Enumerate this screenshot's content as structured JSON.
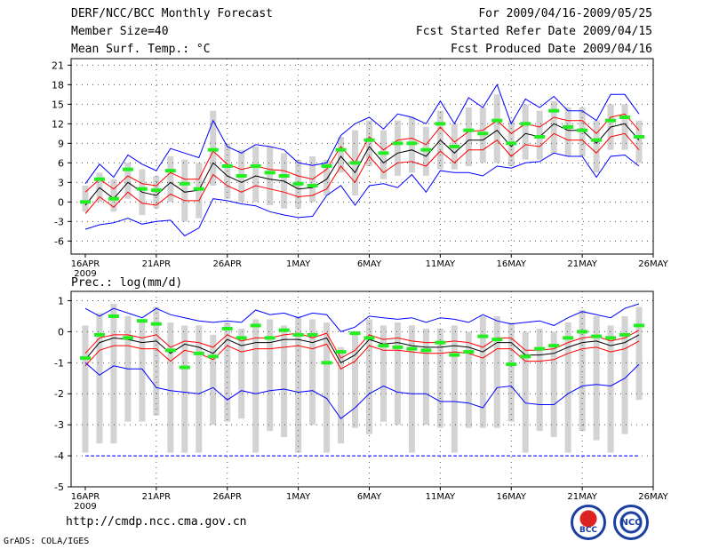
{
  "header": {
    "title": "DERF/NCC/BCC Monthly Forecast",
    "member_size": "Member Size=40",
    "variable_top": "Mean Surf. Temp.: °C",
    "period": "For 2009/04/16-2009/05/25",
    "started": "Fcst Started Refer Date 2009/04/15",
    "produced": "Fcst Produced Date 2009/04/16"
  },
  "footer": {
    "url": "http://cmdp.ncc.cma.gov.cn",
    "credit": "GrADS: COLA/IGES",
    "logo_left_text": "BCC",
    "logo_right_text": "NCC"
  },
  "colors": {
    "spread": "#d3d3d3",
    "max_min": "#0000ff",
    "mean": "#000000",
    "std": "#ff0000",
    "obs": "#22ee22",
    "floor": "#0000ff"
  },
  "chart_data": [
    {
      "type": "line",
      "title": "Mean Surf. Temp.: °C",
      "x_tick_labels": [
        "16APR",
        "21APR",
        "26APR",
        "1MAY",
        "6MAY",
        "11MAY",
        "16MAY",
        "21MAY",
        "26MAY"
      ],
      "x_tick_days": [
        0,
        5,
        10,
        15,
        20,
        25,
        30,
        35,
        40
      ],
      "year_label": "2009",
      "ylim": [
        -8,
        22
      ],
      "yticks": [
        -6,
        -3,
        0,
        3,
        6,
        9,
        12,
        15,
        18,
        21
      ],
      "series": [
        {
          "name": "max",
          "values": [
            -4.2,
            -3.5,
            -3.2,
            -2.5,
            -3.4,
            -3.0,
            -2.8,
            -5.2,
            -4.0,
            0.5,
            0.2,
            -0.3,
            -0.6,
            -1.5,
            -2.0,
            -2.4,
            -2.2,
            1.0,
            2.5,
            -0.5,
            2.5,
            2.8,
            2.2,
            4.2,
            1.5,
            4.8,
            4.5,
            4.5,
            4.0,
            5.5,
            5.2,
            6.0,
            6.2,
            7.5,
            7.0,
            7.0,
            3.8,
            7.0,
            7.2,
            5.5
          ]
        },
        {
          "name": "plus_std",
          "values": [
            1.5,
            3.5,
            2.0,
            4.0,
            2.8,
            2.5,
            4.5,
            3.5,
            3.5,
            7.8,
            5.8,
            5.0,
            5.5,
            5.0,
            4.8,
            4.0,
            3.5,
            5.0,
            8.5,
            6.0,
            10.0,
            8.0,
            9.5,
            9.8,
            8.8,
            11.5,
            9.2,
            10.8,
            11.0,
            12.5,
            10.5,
            12.0,
            11.5,
            13.0,
            12.5,
            12.5,
            10.5,
            13.0,
            13.5,
            11.0
          ]
        },
        {
          "name": "mean",
          "values": [
            -0.5,
            2.2,
            0.5,
            3.0,
            1.5,
            1.0,
            3.0,
            1.5,
            1.8,
            6.0,
            4.0,
            3.0,
            4.0,
            3.5,
            3.2,
            2.0,
            2.2,
            3.5,
            7.0,
            4.5,
            8.5,
            6.0,
            7.5,
            8.0,
            7.0,
            9.5,
            7.5,
            9.5,
            9.5,
            11.0,
            8.5,
            10.5,
            10.0,
            12.0,
            11.0,
            11.0,
            9.0,
            11.5,
            12.0,
            9.5
          ]
        },
        {
          "name": "minus_std",
          "values": [
            -1.8,
            0.8,
            -0.8,
            1.5,
            -0.2,
            -0.5,
            1.2,
            0.2,
            0.2,
            4.2,
            2.5,
            1.5,
            2.5,
            2.0,
            1.5,
            0.8,
            1.0,
            2.0,
            5.5,
            3.0,
            7.0,
            4.5,
            6.0,
            6.2,
            5.5,
            7.8,
            6.0,
            8.0,
            8.0,
            9.5,
            7.0,
            8.8,
            8.5,
            10.5,
            9.5,
            9.5,
            7.5,
            10.0,
            10.5,
            8.0
          ]
        },
        {
          "name": "min",
          "values": [
            2.8,
            5.8,
            3.8,
            7.2,
            5.8,
            4.8,
            8.2,
            7.5,
            6.8,
            12.5,
            8.5,
            7.5,
            8.8,
            8.5,
            8.0,
            6.0,
            5.6,
            6.0,
            10.2,
            12.0,
            13.0,
            11.2,
            13.5,
            13.0,
            12.0,
            15.5,
            12.0,
            16.0,
            14.5,
            18.0,
            12.0,
            15.8,
            14.5,
            16.2,
            14.0,
            14.0,
            12.5,
            16.5,
            16.5,
            13.5
          ]
        },
        {
          "name": "obs",
          "values": [
            0.0,
            3.5,
            0.5,
            5.0,
            2.0,
            1.8,
            4.8,
            2.8,
            2.0,
            8.0,
            5.5,
            4.0,
            5.5,
            4.5,
            4.0,
            2.8,
            2.5,
            5.5,
            8.0,
            6.0,
            9.5,
            7.5,
            9.0,
            9.0,
            8.0,
            12.0,
            8.5,
            11.0,
            10.5,
            12.5,
            9.0,
            12.0,
            10.0,
            14.0,
            11.5,
            11.0,
            9.5,
            12.5,
            13.0,
            10.0
          ]
        }
      ],
      "spread_low": [
        -1.5,
        0.0,
        -1.5,
        0.5,
        -2.0,
        -1.0,
        0.0,
        -3.0,
        -2.5,
        2.5,
        0.5,
        0.0,
        0.0,
        -0.5,
        -1.0,
        -1.0,
        0.0,
        1.0,
        4.5,
        1.0,
        5.5,
        3.5,
        4.0,
        4.5,
        4.0,
        5.0,
        5.0,
        5.5,
        6.0,
        6.0,
        5.5,
        6.5,
        6.5,
        7.5,
        7.0,
        7.0,
        4.5,
        8.0,
        8.0,
        6.0
      ],
      "spread_high": [
        2.5,
        4.5,
        3.5,
        6.0,
        5.0,
        4.0,
        7.0,
        6.5,
        6.0,
        14.0,
        9.0,
        8.0,
        8.5,
        8.5,
        7.5,
        6.5,
        7.0,
        6.5,
        10.0,
        11.0,
        12.5,
        11.0,
        12.5,
        13.0,
        11.5,
        14.0,
        12.0,
        14.5,
        14.5,
        16.5,
        12.5,
        15.0,
        14.0,
        15.5,
        14.5,
        14.5,
        12.5,
        15.0,
        15.0,
        12.5
      ]
    },
    {
      "type": "line",
      "title": "Prec.: log(mm/d)",
      "x_tick_labels": [
        "16APR",
        "21APR",
        "26APR",
        "1MAY",
        "6MAY",
        "11MAY",
        "16MAY",
        "21MAY",
        "26MAY"
      ],
      "x_tick_days": [
        0,
        5,
        10,
        15,
        20,
        25,
        30,
        35,
        40
      ],
      "year_label": "2009",
      "ylim": [
        -5,
        1.3
      ],
      "yticks": [
        -5,
        -4,
        -3,
        -2,
        -1,
        0,
        1
      ],
      "floor_value": -4,
      "series": [
        {
          "name": "max",
          "values": [
            0.75,
            0.5,
            0.75,
            0.6,
            0.45,
            0.75,
            0.55,
            0.45,
            0.35,
            0.3,
            0.35,
            0.3,
            0.7,
            0.55,
            0.6,
            0.45,
            0.6,
            0.55,
            0.0,
            0.15,
            0.5,
            0.45,
            0.4,
            0.45,
            0.3,
            0.45,
            0.4,
            0.3,
            0.55,
            0.35,
            0.25,
            0.3,
            0.35,
            0.2,
            0.45,
            0.65,
            0.55,
            0.45,
            0.75,
            0.9
          ]
        },
        {
          "name": "plus_std",
          "values": [
            -0.7,
            -0.2,
            -0.1,
            -0.1,
            -0.2,
            -0.1,
            -0.5,
            -0.3,
            -0.35,
            -0.5,
            -0.1,
            -0.3,
            -0.2,
            -0.2,
            -0.1,
            -0.05,
            -0.2,
            -0.05,
            -0.85,
            -0.6,
            -0.1,
            -0.25,
            -0.2,
            -0.3,
            -0.35,
            -0.35,
            -0.3,
            -0.35,
            -0.5,
            -0.2,
            -0.2,
            -0.6,
            -0.6,
            -0.55,
            -0.35,
            -0.2,
            -0.15,
            -0.3,
            -0.2,
            0.05
          ]
        },
        {
          "name": "mean",
          "values": [
            -0.9,
            -0.35,
            -0.2,
            -0.25,
            -0.35,
            -0.3,
            -0.7,
            -0.4,
            -0.5,
            -0.7,
            -0.25,
            -0.45,
            -0.35,
            -0.35,
            -0.25,
            -0.25,
            -0.35,
            -0.2,
            -1.0,
            -0.75,
            -0.25,
            -0.4,
            -0.35,
            -0.45,
            -0.5,
            -0.5,
            -0.45,
            -0.5,
            -0.65,
            -0.35,
            -0.35,
            -0.75,
            -0.75,
            -0.7,
            -0.5,
            -0.35,
            -0.3,
            -0.45,
            -0.35,
            -0.1
          ]
        },
        {
          "name": "minus_std",
          "values": [
            -1.1,
            -0.6,
            -0.45,
            -0.45,
            -0.55,
            -0.55,
            -0.95,
            -0.6,
            -0.7,
            -0.9,
            -0.45,
            -0.65,
            -0.55,
            -0.55,
            -0.5,
            -0.45,
            -0.55,
            -0.4,
            -1.2,
            -0.95,
            -0.45,
            -0.6,
            -0.6,
            -0.65,
            -0.7,
            -0.7,
            -0.65,
            -0.7,
            -0.85,
            -0.55,
            -0.55,
            -0.95,
            -0.95,
            -0.9,
            -0.7,
            -0.55,
            -0.5,
            -0.65,
            -0.55,
            -0.3
          ]
        },
        {
          "name": "min",
          "values": [
            -1.0,
            -1.4,
            -1.1,
            -1.2,
            -1.2,
            -1.8,
            -1.9,
            -1.95,
            -2.0,
            -1.8,
            -2.2,
            -1.9,
            -2.0,
            -1.9,
            -1.85,
            -1.95,
            -1.9,
            -2.15,
            -2.8,
            -2.45,
            -2.0,
            -1.75,
            -1.95,
            -2.0,
            -2.0,
            -2.25,
            -2.25,
            -2.3,
            -2.45,
            -1.8,
            -1.75,
            -2.3,
            -2.35,
            -2.35,
            -2.0,
            -1.75,
            -1.7,
            -1.75,
            -1.5,
            -1.05
          ]
        },
        {
          "name": "obs",
          "values": [
            -0.85,
            -0.1,
            0.5,
            -0.2,
            0.35,
            0.25,
            -0.6,
            -1.15,
            -0.7,
            -0.8,
            0.1,
            -0.2,
            0.2,
            -0.2,
            0.05,
            -0.1,
            -0.1,
            -1.0,
            -0.65,
            -0.05,
            -0.2,
            -0.45,
            -0.5,
            -0.55,
            -0.6,
            -0.35,
            -0.75,
            -0.65,
            -0.15,
            -0.25,
            -1.05,
            -0.8,
            -0.55,
            -0.45,
            -0.2,
            0.0,
            -0.15,
            -0.2,
            -0.1,
            0.2
          ]
        }
      ],
      "spread_low": [
        -3.9,
        -3.6,
        -3.6,
        -2.9,
        -2.9,
        -2.7,
        -3.9,
        -3.9,
        -3.9,
        -3.0,
        -2.9,
        -2.8,
        -3.9,
        -3.2,
        -3.4,
        -3.9,
        -3.0,
        -3.9,
        -3.6,
        -3.1,
        -3.3,
        -2.9,
        -3.0,
        -3.9,
        -3.0,
        -3.1,
        -3.9,
        -3.1,
        -3.1,
        -3.1,
        -2.9,
        -3.9,
        -3.2,
        -3.4,
        -3.9,
        -3.2,
        -3.5,
        -3.9,
        -3.3,
        -2.2
      ],
      "spread_high": [
        0.2,
        0.6,
        0.9,
        0.5,
        0.4,
        0.8,
        0.3,
        0.2,
        0.2,
        -0.1,
        0.3,
        0.1,
        0.4,
        0.4,
        0.2,
        0.5,
        0.4,
        0.3,
        -0.5,
        -0.1,
        0.4,
        0.2,
        0.3,
        0.2,
        0.1,
        0.1,
        0.2,
        0.0,
        0.5,
        0.5,
        0.3,
        0.0,
        0.1,
        0.0,
        0.3,
        0.7,
        0.5,
        0.2,
        0.5,
        0.8
      ]
    }
  ]
}
